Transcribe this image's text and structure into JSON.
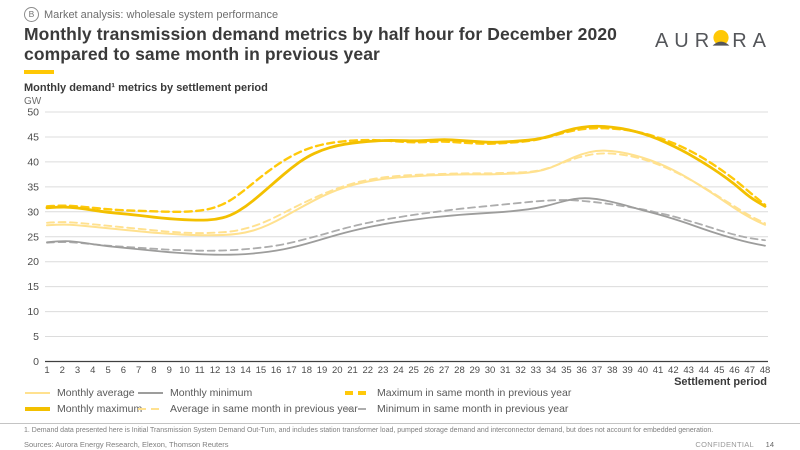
{
  "header": {
    "badge": "B",
    "eyebrow": "Market analysis:  wholesale system performance",
    "title_line1": "Monthly transmission demand metrics by half hour for December 2020",
    "title_line2": "compared to same month in previous year",
    "logo_pre": "AUR",
    "logo_post": "RA",
    "logo_icon": "sun-icon"
  },
  "chart": {
    "subtitle": "Monthly demand¹ metrics by settlement period",
    "unit": "GW",
    "xaxis_title": "Settlement period"
  },
  "colors": {
    "accent_yellow": "#FFC805",
    "max_yellow": "#F3C000",
    "max_prev_yellow": "#FFC90A",
    "avg_yellow": "#FFE18F",
    "min_gray": "#9D9D9C",
    "min_prev_gray": "#ADADAD",
    "gridline": "#DCDCDC",
    "axis": "#404040"
  },
  "chart_data": {
    "type": "line",
    "title": "Monthly demand metrics by settlement period",
    "xlabel": "Settlement period",
    "ylabel": "GW",
    "ylim": [
      0,
      50
    ],
    "ytick_step": 5,
    "yticks": [
      0,
      5,
      10,
      15,
      20,
      25,
      30,
      35,
      40,
      45,
      50
    ],
    "grid": "horizontal",
    "legend_position": "bottom",
    "x": [
      1,
      2,
      3,
      4,
      5,
      6,
      7,
      8,
      9,
      10,
      11,
      12,
      13,
      14,
      15,
      16,
      17,
      18,
      19,
      20,
      21,
      22,
      23,
      24,
      25,
      26,
      27,
      28,
      29,
      30,
      31,
      32,
      33,
      34,
      35,
      36,
      37,
      38,
      39,
      40,
      41,
      42,
      43,
      44,
      45,
      46,
      47,
      48
    ],
    "series": [
      {
        "key": "min_prev_year",
        "name": "Minimum in same month in previous year",
        "color": "#ADADAD",
        "dash": true,
        "width": 1.8,
        "values": [
          23.8,
          24.0,
          23.8,
          23.5,
          23.2,
          23.0,
          22.8,
          22.6,
          22.4,
          22.3,
          22.2,
          22.2,
          22.3,
          22.5,
          22.8,
          23.2,
          23.8,
          24.6,
          25.4,
          26.3,
          27.1,
          27.8,
          28.4,
          28.9,
          29.4,
          29.8,
          30.2,
          30.6,
          30.9,
          31.2,
          31.5,
          31.8,
          32.1,
          32.3,
          32.4,
          32.2,
          31.9,
          31.5,
          31.0,
          30.5,
          29.8,
          29.1,
          28.2,
          27.3,
          26.3,
          25.4,
          24.7,
          24.3
        ]
      },
      {
        "key": "monthly_minimum",
        "name": "Monthly minimum",
        "color": "#9D9D9C",
        "dash": false,
        "width": 1.8,
        "values": [
          23.9,
          24.2,
          24.0,
          23.5,
          23.1,
          22.8,
          22.5,
          22.2,
          21.9,
          21.7,
          21.5,
          21.4,
          21.4,
          21.5,
          21.8,
          22.2,
          22.8,
          23.6,
          24.5,
          25.4,
          26.2,
          26.9,
          27.5,
          28.0,
          28.4,
          28.8,
          29.1,
          29.4,
          29.6,
          29.8,
          30.0,
          30.3,
          30.7,
          31.4,
          32.3,
          32.8,
          32.6,
          32.0,
          31.2,
          30.3,
          29.5,
          28.6,
          27.6,
          26.5,
          25.5,
          24.6,
          23.8,
          23.2
        ]
      },
      {
        "key": "avg_prev_year",
        "name": "Average in same month in previous year",
        "color": "#FFE18F",
        "dash": true,
        "width": 1.9,
        "values": [
          27.8,
          28.0,
          27.8,
          27.5,
          27.2,
          26.9,
          26.6,
          26.3,
          26.0,
          25.8,
          25.7,
          25.8,
          26.0,
          26.6,
          27.6,
          29.0,
          30.6,
          32.1,
          33.5,
          34.7,
          35.7,
          36.4,
          36.9,
          37.2,
          37.4,
          37.5,
          37.6,
          37.7,
          37.7,
          37.7,
          37.8,
          37.9,
          38.1,
          38.9,
          40.1,
          41.1,
          41.7,
          41.7,
          41.3,
          40.6,
          39.5,
          38.2,
          36.6,
          34.9,
          33.0,
          31.1,
          29.2,
          27.7
        ]
      },
      {
        "key": "monthly_average",
        "name": "Monthly average",
        "color": "#FFE18F",
        "dash": false,
        "width": 2.0,
        "values": [
          27.3,
          27.5,
          27.3,
          27.0,
          26.7,
          26.4,
          26.1,
          25.8,
          25.6,
          25.4,
          25.3,
          25.3,
          25.4,
          25.8,
          26.7,
          28.1,
          29.8,
          31.5,
          33.1,
          34.4,
          35.4,
          36.1,
          36.6,
          36.9,
          37.1,
          37.3,
          37.4,
          37.5,
          37.5,
          37.5,
          37.6,
          37.7,
          38.0,
          38.8,
          40.3,
          41.6,
          42.3,
          42.2,
          41.7,
          40.9,
          39.8,
          38.4,
          36.7,
          34.8,
          32.8,
          30.7,
          28.8,
          27.4
        ]
      },
      {
        "key": "max_prev_year",
        "name": "Maximum in same month in previous year",
        "color": "#FFC90A",
        "dash": true,
        "width": 2.4,
        "values": [
          31.1,
          31.3,
          31.1,
          30.8,
          30.5,
          30.3,
          30.2,
          30.1,
          30.0,
          30.0,
          30.2,
          30.8,
          32.2,
          34.5,
          37.0,
          39.3,
          41.2,
          42.6,
          43.5,
          44.0,
          44.3,
          44.4,
          44.3,
          44.1,
          43.9,
          44.0,
          44.1,
          43.9,
          43.7,
          43.6,
          43.8,
          44.0,
          44.4,
          45.1,
          46.0,
          46.6,
          46.8,
          46.7,
          46.4,
          45.8,
          44.9,
          43.8,
          42.4,
          40.7,
          38.7,
          36.5,
          33.9,
          31.4
        ]
      },
      {
        "key": "monthly_maximum",
        "name": "Monthly maximum",
        "color": "#F3C000",
        "dash": false,
        "width": 2.8,
        "values": [
          30.8,
          31.0,
          30.8,
          30.3,
          29.9,
          29.6,
          29.3,
          28.9,
          28.6,
          28.4,
          28.3,
          28.4,
          29.2,
          31.0,
          33.5,
          36.2,
          38.8,
          41.0,
          42.4,
          43.3,
          43.8,
          44.1,
          44.3,
          44.3,
          44.2,
          44.3,
          44.5,
          44.3,
          44.1,
          43.9,
          44.0,
          44.2,
          44.5,
          45.2,
          46.3,
          47.0,
          47.2,
          47.0,
          46.5,
          45.7,
          44.6,
          43.2,
          41.6,
          39.8,
          37.8,
          35.6,
          32.9,
          31.1
        ]
      }
    ]
  },
  "legend": {
    "items": [
      {
        "label": "Monthly average",
        "color": "#FFE18F",
        "dash": false,
        "thick": false
      },
      {
        "label": "Monthly minimum",
        "color": "#9D9D9C",
        "dash": false,
        "thick": false
      },
      {
        "label": "Maximum in same month in previous year",
        "color": "#FFC90A",
        "dash": true,
        "thick": true
      },
      {
        "label": "Monthly maximum",
        "color": "#F3C000",
        "dash": false,
        "thick": true
      },
      {
        "label": "Average in same month in previous year",
        "color": "#FFE18F",
        "dash": true,
        "thick": false
      },
      {
        "label": "Minimum in same month in previous year",
        "color": "#ADADAD",
        "dash": true,
        "thick": false
      }
    ]
  },
  "footer": {
    "footnote": "1. Demand data presented here is Initial Transmission System Demand Out-Turn, and includes station transformer load, pumped storage demand and interconnector demand, but does not account for embedded generation.",
    "sources": "Sources: Aurora Energy Research, Elexon, Thomson Reuters",
    "confidential": "CONFIDENTIAL",
    "page_number": "14"
  }
}
